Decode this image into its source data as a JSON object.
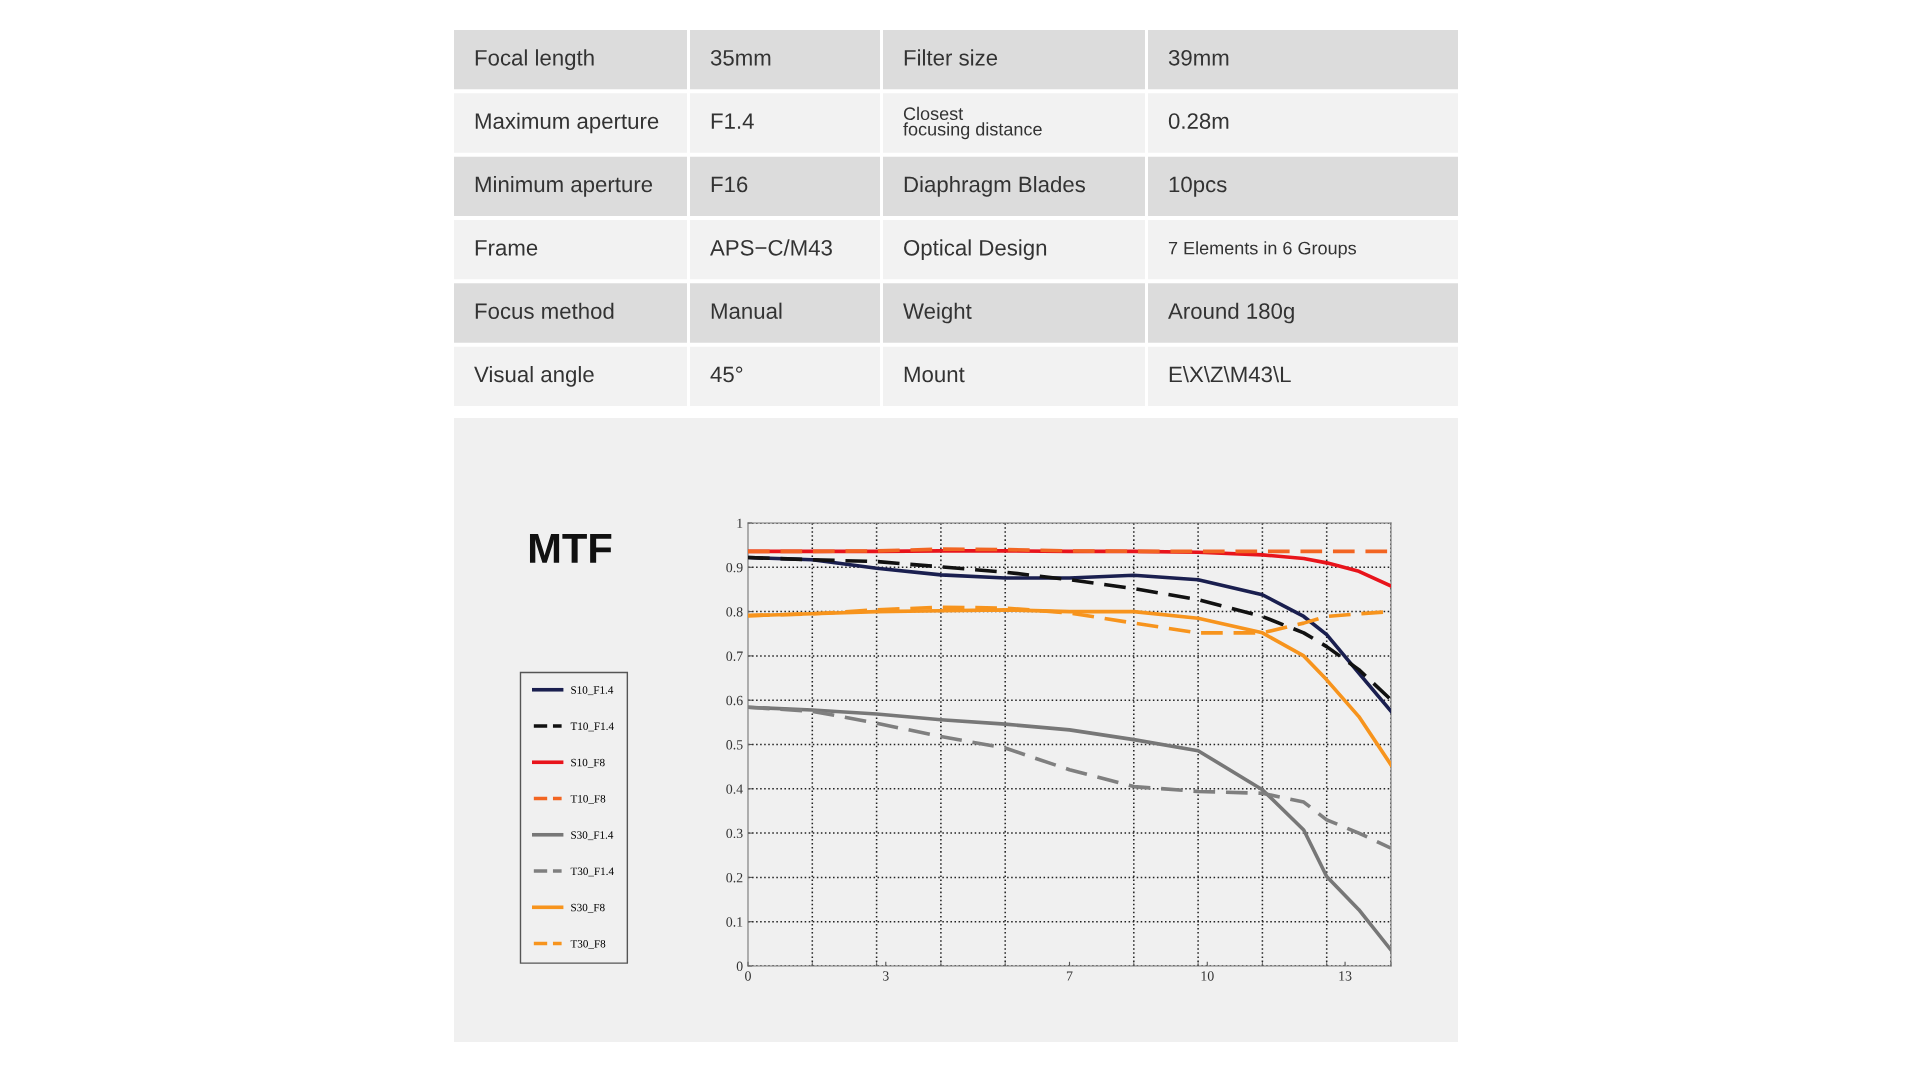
{
  "chart_data": [
    {
      "type": "other",
      "annotations": [
        "Focal length",
        "35mm",
        "Filter size",
        "39mm",
        "Maximum aperture",
        "F1.4",
        "Closest\nfocusing distance",
        "0.28m",
        "Minimum aperture",
        "F16",
        "Diaphragm Blades",
        "10pcs",
        "Frame",
        "APS−C/M43",
        "Optical Design",
        "7 Elements in 6 Groups",
        "Focus method",
        "Manual",
        "Weight",
        "Around 180g",
        "Visual angle",
        "45°",
        "Mount",
        "E\\X\\Z\\M43\\L"
      ]
    },
    {
      "type": "line",
      "title": "MTF",
      "x": [
        0,
        1.4,
        2.8,
        4.2,
        5.6,
        7,
        8.4,
        9.8,
        11.2,
        12.1,
        12.6,
        13.3,
        14
      ],
      "xlim": [
        0,
        14
      ],
      "xticks": [
        0,
        {
          "value": 1.4,
          "label": null
        },
        {
          "value": 2.8,
          "label": null
        },
        3,
        {
          "value": 4.2,
          "label": null
        },
        {
          "value": 5.6,
          "label": null
        },
        7,
        {
          "value": 8.4,
          "label": null
        },
        {
          "value": 9.8,
          "label": null
        },
        10,
        {
          "value": 11.2,
          "label": null
        },
        {
          "value": 12.6,
          "label": null
        },
        13,
        {
          "value": 14,
          "label": null
        }
      ],
      "ylim": [
        0,
        1
      ],
      "yticks": [
        0,
        0.1,
        0.2,
        0.3,
        0.4,
        0.5,
        0.6,
        0.7,
        0.8,
        0.9,
        1
      ],
      "grid": true,
      "legend": "left",
      "series": [
        {
          "name": "S10_F1.4",
          "color": "#1a1f4f",
          "line_style": "solid",
          "values": [
            0.922,
            0.917,
            0.898,
            0.883,
            0.876,
            0.876,
            0.882,
            0.872,
            0.838,
            0.789,
            0.748,
            0.661,
            0.575
          ]
        },
        {
          "name": "T10_F1.4",
          "color": "#111111",
          "line_style": "dashed",
          "values": [
            0.922,
            0.917,
            0.913,
            0.901,
            0.889,
            0.872,
            0.852,
            0.827,
            0.789,
            0.752,
            0.721,
            0.669,
            0.601
          ]
        },
        {
          "name": "S10_F8",
          "color": "#e8141b",
          "line_style": "solid",
          "values": [
            0.936,
            0.936,
            0.936,
            0.937,
            0.937,
            0.936,
            0.936,
            0.934,
            0.928,
            0.92,
            0.91,
            0.891,
            0.858
          ]
        },
        {
          "name": "T10_F8",
          "color": "#f26522",
          "line_style": "dashed",
          "values": [
            0.936,
            0.936,
            0.937,
            0.941,
            0.94,
            0.937,
            0.936,
            0.936,
            0.936,
            0.936,
            0.936,
            0.936,
            0.936
          ]
        },
        {
          "name": "S30_F1.4",
          "color": "#777777",
          "line_style": "solid",
          "values": [
            0.584,
            0.578,
            0.569,
            0.556,
            0.546,
            0.533,
            0.511,
            0.486,
            0.398,
            0.307,
            0.202,
            0.127,
            0.036
          ]
        },
        {
          "name": "T30_F1.4",
          "color": "#7f7f7f",
          "line_style": "dashed",
          "values": [
            0.584,
            0.575,
            0.548,
            0.518,
            0.492,
            0.443,
            0.405,
            0.394,
            0.39,
            0.37,
            0.33,
            0.3,
            0.266
          ]
        },
        {
          "name": "S30_F8",
          "color": "#f7941d",
          "line_style": "solid",
          "values": [
            0.791,
            0.795,
            0.8,
            0.802,
            0.804,
            0.8,
            0.8,
            0.785,
            0.752,
            0.7,
            0.646,
            0.563,
            0.454
          ]
        },
        {
          "name": "T30_F8",
          "color": "#f7941d",
          "line_style": "dashed",
          "values": [
            0.791,
            0.795,
            0.804,
            0.81,
            0.808,
            0.797,
            0.774,
            0.752,
            0.752,
            0.774,
            0.789,
            0.795,
            0.8
          ]
        }
      ]
    }
  ]
}
